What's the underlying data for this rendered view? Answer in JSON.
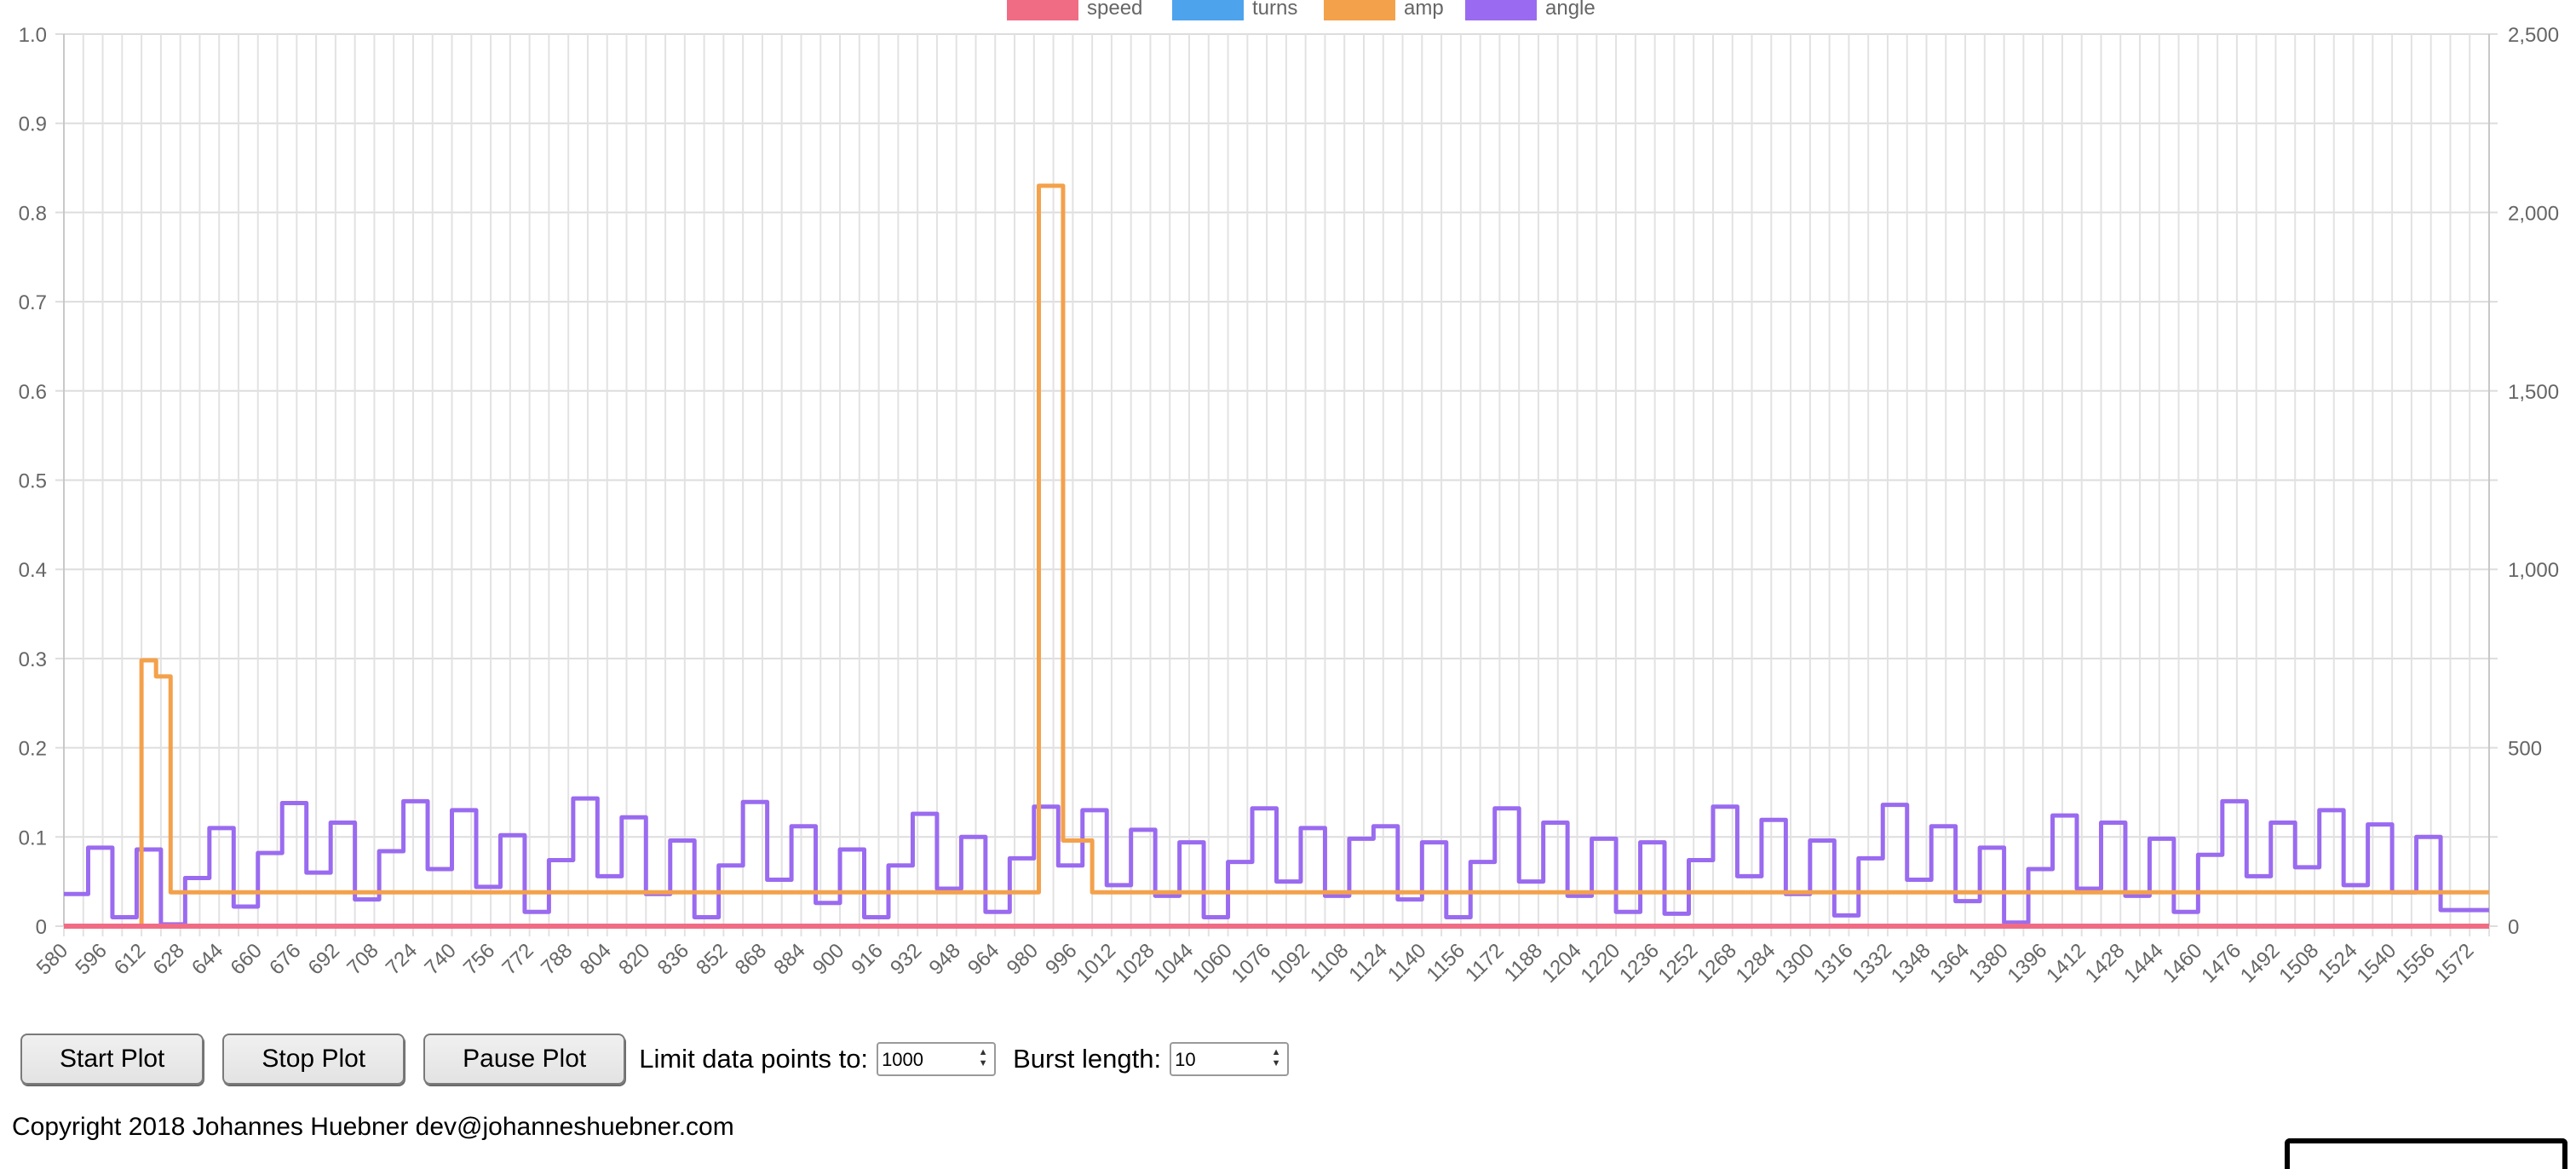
{
  "chart_data": {
    "type": "line",
    "legend": [
      "speed",
      "turns",
      "amp",
      "angle"
    ],
    "legend_position": "top",
    "colors": {
      "speed": "#f06c85",
      "turns": "#4da3ec",
      "amp": "#f4a14c",
      "angle": "#9a6bf0"
    },
    "grid": true,
    "x_range": [
      580,
      1580
    ],
    "x_ticks": [
      580,
      596,
      612,
      628,
      644,
      660,
      676,
      692,
      708,
      724,
      740,
      756,
      772,
      788,
      804,
      820,
      836,
      852,
      868,
      884,
      900,
      916,
      932,
      948,
      964,
      980,
      996,
      1012,
      1028,
      1044,
      1060,
      1076,
      1092,
      1108,
      1124,
      1140,
      1156,
      1172,
      1188,
      1204,
      1220,
      1236,
      1252,
      1268,
      1284,
      1300,
      1316,
      1332,
      1348,
      1364,
      1380,
      1396,
      1412,
      1428,
      1444,
      1460,
      1476,
      1492,
      1508,
      1524,
      1540,
      1556,
      1572
    ],
    "y_left": {
      "range": [
        0,
        1.0
      ],
      "ticks": [
        0,
        0.1,
        0.2,
        0.3,
        0.4,
        0.5,
        0.6,
        0.7,
        0.8,
        0.9,
        1.0
      ],
      "tick_labels": [
        "0",
        "0.1",
        "0.2",
        "0.3",
        "0.4",
        "0.5",
        "0.6",
        "0.7",
        "0.8",
        "0.9",
        "1.0"
      ]
    },
    "y_right": {
      "range": [
        0,
        2500
      ],
      "ticks": [
        0,
        500,
        1000,
        1500,
        2000,
        2500
      ],
      "tick_labels": [
        "0",
        "500",
        "1,000",
        "1,500",
        "2,000",
        "2,500"
      ]
    },
    "series": [
      {
        "name": "speed",
        "axis": "left",
        "x": [
          580,
          1580
        ],
        "y": [
          0,
          0
        ]
      },
      {
        "name": "turns",
        "axis": "left",
        "x": [
          580,
          1580
        ],
        "y": [
          0,
          0
        ]
      },
      {
        "name": "amp",
        "axis": "right",
        "x": [
          580,
          610,
          612,
          616,
          618,
          622,
          624,
          980,
          982,
          990,
          992,
          1002,
          1004,
          1580
        ],
        "y": [
          0,
          0,
          745,
          745,
          700,
          700,
          95,
          95,
          2075,
          2075,
          240,
          240,
          95,
          95
        ]
      },
      {
        "name": "angle",
        "axis": "right",
        "x": [
          580,
          590,
          600,
          610,
          620,
          630,
          640,
          650,
          660,
          670,
          680,
          690,
          700,
          710,
          720,
          730,
          740,
          750,
          760,
          770,
          780,
          790,
          800,
          810,
          820,
          830,
          840,
          850,
          860,
          870,
          880,
          890,
          900,
          910,
          920,
          930,
          940,
          950,
          960,
          970,
          980,
          990,
          1000,
          1010,
          1020,
          1030,
          1040,
          1050,
          1060,
          1070,
          1080,
          1090,
          1100,
          1110,
          1120,
          1130,
          1140,
          1150,
          1160,
          1170,
          1180,
          1190,
          1200,
          1210,
          1220,
          1230,
          1240,
          1250,
          1260,
          1270,
          1280,
          1290,
          1300,
          1310,
          1320,
          1330,
          1340,
          1350,
          1360,
          1370,
          1380,
          1390,
          1400,
          1410,
          1420,
          1430,
          1440,
          1450,
          1460,
          1470,
          1480,
          1490,
          1500,
          1510,
          1520,
          1530,
          1540,
          1550,
          1560,
          1570
        ],
        "y": [
          90,
          220,
          25,
          215,
          5,
          135,
          275,
          55,
          205,
          345,
          150,
          290,
          75,
          210,
          350,
          160,
          325,
          110,
          255,
          40,
          185,
          358,
          140,
          305,
          90,
          240,
          25,
          170,
          348,
          130,
          280,
          65,
          215,
          25,
          170,
          315,
          105,
          250,
          40,
          190,
          335,
          170,
          325,
          115,
          270,
          85,
          235,
          25,
          180,
          330,
          125,
          275,
          85,
          245,
          280,
          75,
          235,
          25,
          180,
          330,
          125,
          290,
          85,
          245,
          40,
          235,
          35,
          185,
          335,
          140,
          298,
          90,
          240,
          30,
          190,
          340,
          130,
          280,
          70,
          220,
          10,
          160,
          310,
          105,
          290,
          85,
          245,
          40,
          200,
          350,
          140,
          290,
          165,
          325,
          115,
          285,
          95,
          250,
          45,
          45
        ]
      }
    ]
  },
  "controls": {
    "start_label": "Start Plot",
    "stop_label": "Stop Plot",
    "pause_label": "Pause Plot",
    "limit_label": "Limit data points to:",
    "limit_value": "1000",
    "burst_label": "Burst length:",
    "burst_value": "10"
  },
  "footer": {
    "text": "Copyright 2018 Johannes Huebner dev@johanneshuebner.com"
  }
}
